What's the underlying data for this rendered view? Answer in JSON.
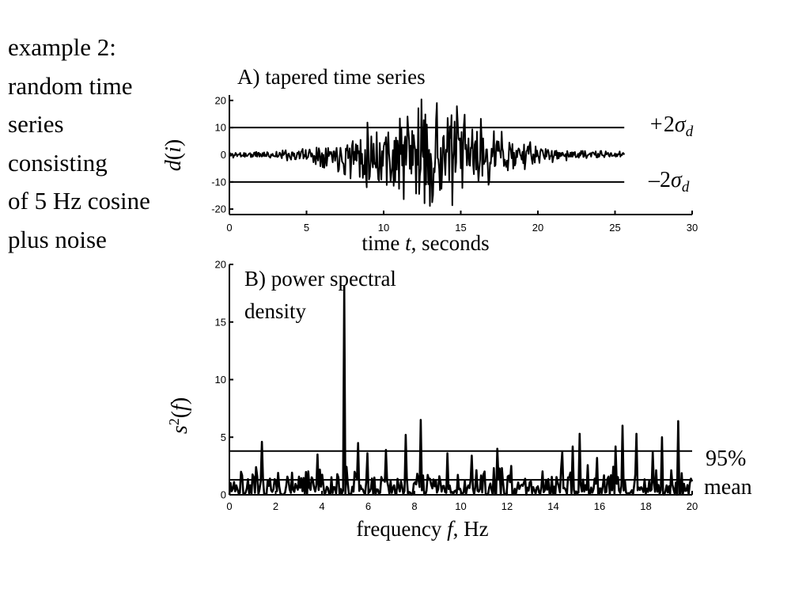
{
  "caption": {
    "lines": [
      "example 2:",
      "random time",
      "series",
      "consisting",
      "of 5 Hz cosine",
      "plus noise"
    ]
  },
  "colors": {
    "ink": "#000000",
    "background": "#ffffff"
  },
  "chart_data": [
    {
      "type": "line",
      "title": "A) tapered time series",
      "xlabel_pre": "time ",
      "xlabel_var": "t",
      "xlabel_post": ", seconds",
      "ylabel_var": "d",
      "ylabel_open": "(",
      "ylabel_idx": "i",
      "ylabel_close": ")",
      "xlim": [
        0,
        30
      ],
      "ylim": [
        -22,
        22
      ],
      "xticks": [
        0,
        5,
        10,
        15,
        20,
        25,
        30
      ],
      "xtick_labels": [
        "0",
        "5",
        "10",
        "15",
        "20",
        "25",
        "30"
      ],
      "yticks": [
        20,
        10,
        0,
        -10,
        -20
      ],
      "ytick_labels": [
        "20",
        "10",
        "0",
        "-10",
        "-20"
      ],
      "reference_lines": [
        {
          "y": 10,
          "sign": "+",
          "coef": "2",
          "sym": "σ",
          "sub": "d"
        },
        {
          "y": -10,
          "sign": "–",
          "coef": "2",
          "sym": "σ",
          "sub": "d"
        }
      ],
      "ref_x_range": [
        0,
        25.6
      ],
      "series": [
        {
          "name": "d(t)",
          "x_range": [
            0,
            25.6
          ],
          "taper_center": 12.8,
          "taper_width": 3.6,
          "background_amplitude": 1.3,
          "peak_amplitude": 20.5,
          "samples": 513,
          "seed": 11
        }
      ]
    },
    {
      "type": "line",
      "title_line1": "B) power spectral",
      "title_line2": "density",
      "xlabel_pre": "frequency ",
      "xlabel_var": "f",
      "xlabel_post": ", Hz",
      "ylabel_var": "s",
      "ylabel_sup": "2",
      "ylabel_open": "(",
      "ylabel_idx": "f",
      "ylabel_close": ")",
      "xlim": [
        0,
        20
      ],
      "ylim": [
        0,
        20
      ],
      "xticks": [
        0,
        2,
        4,
        6,
        8,
        10,
        12,
        14,
        16,
        18,
        20
      ],
      "xtick_labels": [
        "0",
        "2",
        "4",
        "6",
        "8",
        "10",
        "12",
        "14",
        "16",
        "18",
        "20"
      ],
      "yticks": [
        20,
        15,
        10,
        5,
        0
      ],
      "ytick_labels": [
        "20",
        "15",
        "10",
        "5",
        "0"
      ],
      "reference_lines": [
        {
          "y": 3.8,
          "label": "95%"
        },
        {
          "y": 1.3,
          "label": "mean"
        }
      ],
      "series": [
        {
          "name": "s²(f)",
          "samples": 400,
          "seed": 7,
          "peaks": [
            [
              0.5,
              2.0
            ],
            [
              1.4,
              4.6
            ],
            [
              3.8,
              3.5
            ],
            [
              4.95,
              18.1
            ],
            [
              5.55,
              4.5
            ],
            [
              5.95,
              3.6
            ],
            [
              6.75,
              3.9
            ],
            [
              7.6,
              5.2
            ],
            [
              8.25,
              6.5
            ],
            [
              9.4,
              3.6
            ],
            [
              10.5,
              3.4
            ],
            [
              11.6,
              4.0
            ],
            [
              12.2,
              2.5
            ],
            [
              14.4,
              3.7
            ],
            [
              14.85,
              4.2
            ],
            [
              15.15,
              5.3
            ],
            [
              15.9,
              3.2
            ],
            [
              16.7,
              4.2
            ],
            [
              17.0,
              6.0
            ],
            [
              17.6,
              5.3
            ],
            [
              18.3,
              3.7
            ],
            [
              18.7,
              5.0
            ],
            [
              19.4,
              6.4
            ]
          ]
        }
      ]
    }
  ]
}
